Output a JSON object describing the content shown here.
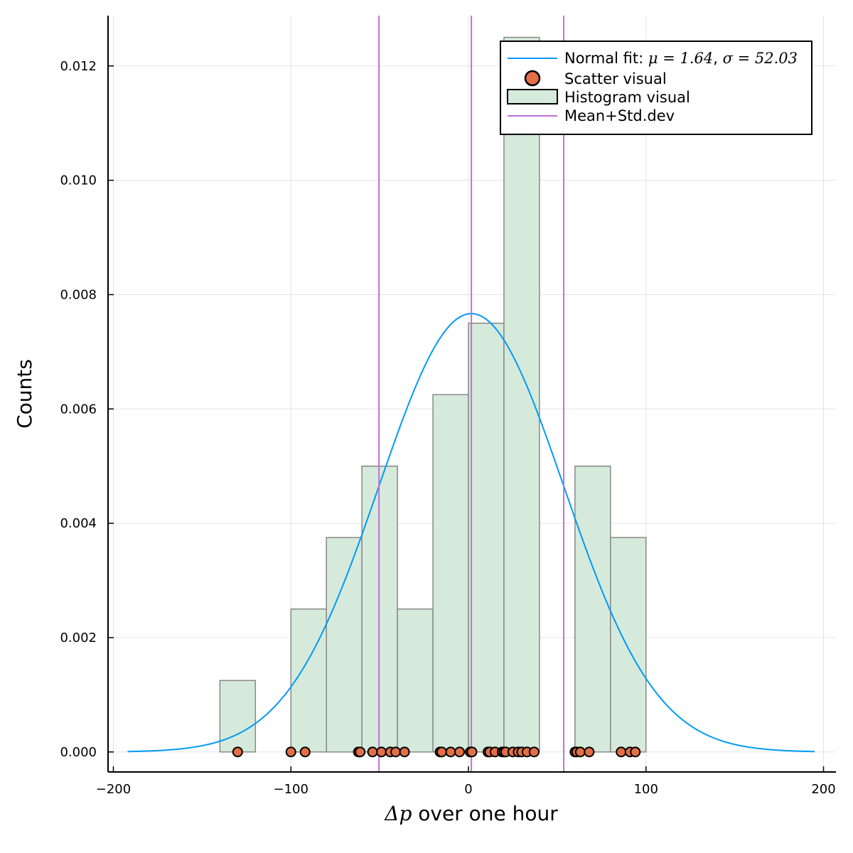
{
  "chart_data": {
    "type": "bar",
    "xlabel_prefix": "Δp",
    "xlabel_rest": " over one hour",
    "ylabel": "Counts",
    "xlim": [
      -203,
      207
    ],
    "ylim": [
      -0.00035,
      0.01288
    ],
    "xticks": [
      -200,
      -100,
      0,
      100,
      200
    ],
    "xtick_labels": [
      "−200",
      "−100",
      "0",
      "100",
      "200"
    ],
    "yticks": [
      0,
      0.002,
      0.004,
      0.006,
      0.008,
      0.01,
      0.012
    ],
    "ytick_labels": [
      "0.000",
      "0.002",
      "0.004",
      "0.006",
      "0.008",
      "0.010",
      "0.012"
    ],
    "grid": true,
    "legend_position": "top-right",
    "histogram": {
      "name": "Histogram visual",
      "bin_edges": [
        -140,
        -120,
        -100,
        -80,
        -60,
        -40,
        -20,
        0,
        20,
        40,
        60,
        80,
        100
      ],
      "densities": [
        0.00125,
        0,
        0.0025,
        0.00375,
        0.005,
        0.0025,
        0.00625,
        0.0075,
        0.0125,
        0,
        0.005,
        0.00375
      ],
      "color": "#d5eadb",
      "edge_color": "#888888"
    },
    "normal_fit": {
      "label_prefix": "Normal fit: ",
      "mu_symbol": "μ",
      "mu": 1.64,
      "sigma_symbol": "σ",
      "sigma": 52.03,
      "x_range": [
        -192,
        195
      ],
      "color": "#009af9"
    },
    "scatter": {
      "name": "Scatter visual",
      "x": [
        -130,
        -100,
        -92,
        -62,
        -61,
        -54,
        -49,
        -44,
        -41,
        -36,
        -16,
        -15,
        -10,
        -5,
        1,
        2,
        11,
        12,
        15,
        19,
        20,
        21,
        25,
        28,
        30,
        33,
        37,
        60,
        61,
        63,
        68,
        86,
        91,
        94
      ],
      "y": 0,
      "color": "#e26f46"
    },
    "reference_lines": {
      "name": "Mean+Std.dev",
      "x": [
        -50.39,
        1.64,
        53.67
      ],
      "color": "#c271d2"
    }
  }
}
